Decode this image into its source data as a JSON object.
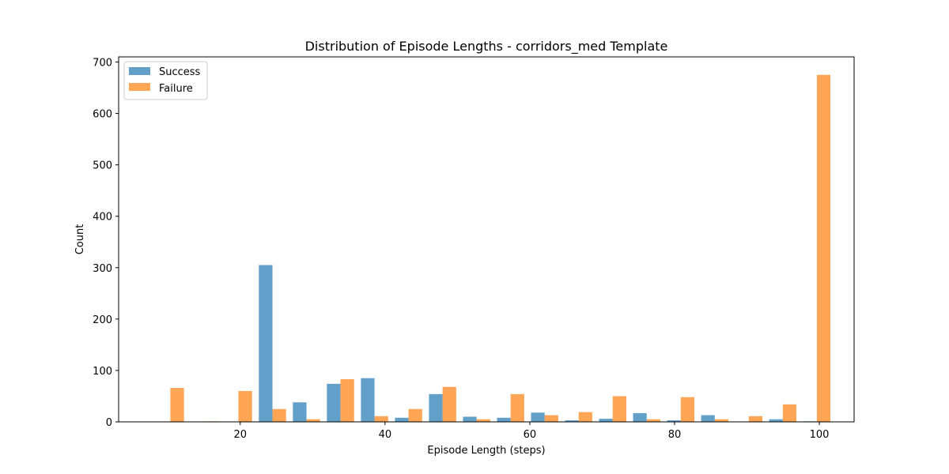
{
  "chart_data": {
    "type": "bar",
    "title": "Distribution of Episode Lengths - corridors_med Template",
    "xlabel": "Episode Length (steps)",
    "ylabel": "Count",
    "xlim": [
      3.2,
      104.8
    ],
    "ylim": [
      0,
      710
    ],
    "xticks": [
      20,
      40,
      60,
      80,
      100
    ],
    "yticks": [
      0,
      100,
      200,
      300,
      400,
      500,
      600,
      700
    ],
    "grid": false,
    "legend_position": "upper-left",
    "bin_edges": [
      8.0,
      12.7,
      17.4,
      22.1,
      26.8,
      31.5,
      36.2,
      40.9,
      45.6,
      50.3,
      55.0,
      59.7,
      64.4,
      69.1,
      73.8,
      78.5,
      83.2,
      87.9,
      92.6,
      97.3,
      102.0
    ],
    "series": [
      {
        "name": "Success",
        "color": "#1f77b4",
        "values": [
          0,
          0,
          0,
          305,
          38,
          74,
          85,
          8,
          54,
          10,
          8,
          18,
          3,
          6,
          17,
          3,
          13,
          0,
          5,
          1
        ]
      },
      {
        "name": "Failure",
        "color": "#ff7f0e",
        "values": [
          66,
          1,
          60,
          25,
          5,
          83,
          11,
          25,
          68,
          5,
          54,
          13,
          19,
          50,
          5,
          48,
          5,
          11,
          34,
          675
        ]
      }
    ]
  }
}
